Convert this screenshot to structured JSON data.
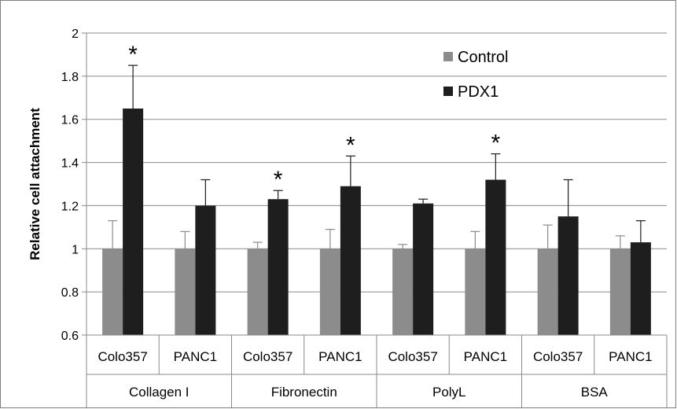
{
  "chart_data": {
    "type": "bar",
    "title": "",
    "xlabel": "",
    "ylabel": "Relative cell attachment",
    "ylim": [
      0.6,
      2
    ],
    "ytick_step": 0.2,
    "grid": true,
    "legend_position": "top-right",
    "groups": [
      {
        "name": "Collagen I",
        "categories": [
          "Colo357",
          "PANC1"
        ]
      },
      {
        "name": "Fibronectin",
        "categories": [
          "Colo357",
          "PANC1"
        ]
      },
      {
        "name": "PolyL",
        "categories": [
          "Colo357",
          "PANC1"
        ]
      },
      {
        "name": "BSA",
        "categories": [
          "Colo357",
          "PANC1"
        ]
      }
    ],
    "categories": [
      "Colo357",
      "PANC1",
      "Colo357",
      "PANC1",
      "Colo357",
      "PANC1",
      "Colo357",
      "PANC1"
    ],
    "series": [
      {
        "name": "Control",
        "color": "#8c8c8c",
        "values": [
          1.0,
          1.0,
          1.0,
          1.0,
          1.0,
          1.0,
          1.0,
          1.0
        ],
        "errors": [
          0.13,
          0.08,
          0.03,
          0.09,
          0.02,
          0.08,
          0.11,
          0.06
        ]
      },
      {
        "name": "PDX1",
        "color": "#1e1e1e",
        "values": [
          1.65,
          1.2,
          1.23,
          1.29,
          1.21,
          1.32,
          1.15,
          1.03
        ],
        "errors": [
          0.2,
          0.12,
          0.04,
          0.14,
          0.02,
          0.12,
          0.17,
          0.1
        ]
      }
    ],
    "annotations": [
      {
        "text": "*",
        "category_index": 0,
        "series": "PDX1"
      },
      {
        "text": "*",
        "category_index": 2,
        "series": "PDX1"
      },
      {
        "text": "*",
        "category_index": 3,
        "series": "PDX1"
      },
      {
        "text": "*",
        "category_index": 5,
        "series": "PDX1"
      }
    ]
  }
}
